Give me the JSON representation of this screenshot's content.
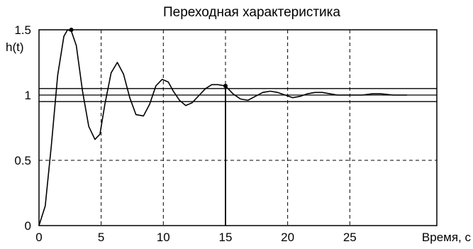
{
  "chart_data": {
    "type": "line",
    "title": "Переходная характеристика",
    "ylabel": "h(t)",
    "xlabel": "Время, с",
    "xlim": [
      0,
      32
    ],
    "ylim": [
      0,
      1.5
    ],
    "x_ticks": [
      0,
      5,
      10,
      15,
      20,
      25
    ],
    "x_tick_labels": [
      "0",
      "5",
      "10",
      "15",
      "20",
      "25"
    ],
    "y_ticks": [
      0,
      0.5,
      1,
      1.5
    ],
    "y_tick_labels": [
      "0",
      "0.5",
      "1",
      "1.5"
    ],
    "grid": true,
    "grid_style": "dashed",
    "colors": {
      "curve": "#000000",
      "grid": "#000000",
      "band": "#000000"
    },
    "series": [
      {
        "x": [
          0,
          0.5,
          1.0,
          1.5,
          2.0,
          2.3,
          2.6,
          3.0,
          3.5,
          4.0,
          4.5,
          4.9,
          5.3,
          5.8,
          6.3,
          6.8,
          7.3,
          7.8,
          8.4,
          8.9,
          9.4,
          9.9,
          10.4,
          10.8,
          11.3,
          11.8,
          12.3,
          12.9,
          13.4,
          13.9,
          14.4,
          15.0,
          15.6,
          16.2,
          16.8,
          17.4,
          18.0,
          18.6,
          19.2,
          19.8,
          20.4,
          21.0,
          21.6,
          22.2,
          22.8,
          23.4,
          24.0,
          25.0,
          26.0,
          26.8,
          27.5,
          28.5,
          29.3,
          29.6
        ],
        "y": [
          0,
          0.15,
          0.62,
          1.15,
          1.45,
          1.5,
          1.49,
          1.38,
          1.03,
          0.76,
          0.66,
          0.7,
          0.93,
          1.17,
          1.25,
          1.16,
          0.98,
          0.85,
          0.84,
          0.93,
          1.07,
          1.12,
          1.1,
          1.03,
          0.96,
          0.92,
          0.94,
          1.0,
          1.05,
          1.08,
          1.08,
          1.07,
          1.01,
          0.97,
          0.96,
          0.99,
          1.02,
          1.03,
          1.02,
          1.0,
          0.98,
          0.99,
          1.01,
          1.02,
          1.02,
          1.01,
          1.0,
          1.0,
          1.0,
          1.01,
          1.01,
          1.0,
          1.0,
          1.0
        ]
      }
    ],
    "reference_lines": [
      0.95,
      1.0,
      1.05
    ],
    "markers": [
      {
        "x": 2.6,
        "y": 1.5
      },
      {
        "x": 15.0,
        "y": 1.07
      }
    ],
    "vertical_marker_x": 15.0
  }
}
